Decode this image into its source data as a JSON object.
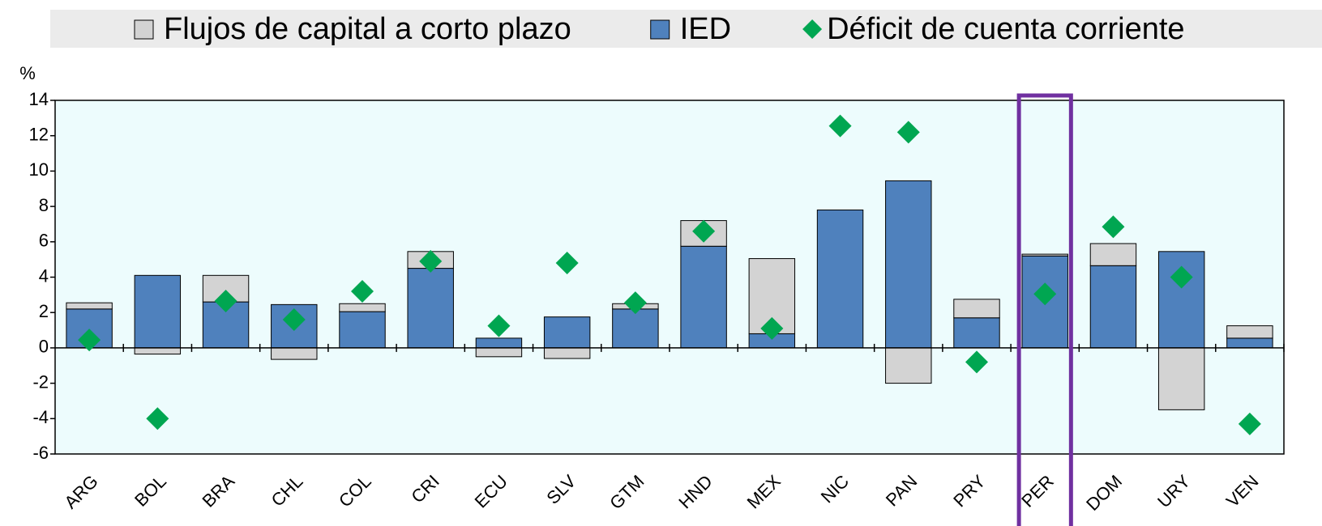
{
  "chart_data": {
    "type": "bar",
    "stacked": true,
    "y_label": "%",
    "categories": [
      "ARG",
      "BOL",
      "BRA",
      "CHL",
      "COL",
      "CRI",
      "ECU",
      "SLV",
      "GTM",
      "HND",
      "MEX",
      "NIC",
      "PAN",
      "PRY",
      "PER",
      "DOM",
      "URY",
      "VEN"
    ],
    "series": [
      {
        "name": "Flujos de capital a corto plazo",
        "color": "#d3d3d3",
        "type": "bar",
        "values": [
          0.35,
          -0.35,
          1.5,
          -0.65,
          0.45,
          0.95,
          -0.5,
          -0.6,
          0.3,
          1.45,
          4.25,
          0,
          -2.0,
          1.05,
          0.1,
          1.25,
          -3.5,
          0.7
        ]
      },
      {
        "name": "IED",
        "color": "#4f81bd",
        "type": "bar",
        "values": [
          2.2,
          4.1,
          2.6,
          2.45,
          2.05,
          4.5,
          0.55,
          1.75,
          2.2,
          5.75,
          0.8,
          7.8,
          9.45,
          1.7,
          5.2,
          4.65,
          5.45,
          0.55
        ]
      },
      {
        "name": "Déficit de cuenta corriente",
        "color": "#00a651",
        "type": "scatter",
        "marker": "diamond",
        "values": [
          0.45,
          -4.0,
          2.65,
          1.6,
          3.2,
          4.9,
          1.25,
          4.8,
          2.55,
          6.6,
          1.1,
          12.55,
          12.2,
          -0.8,
          3.05,
          6.85,
          4.0,
          -4.3
        ]
      }
    ],
    "ylim": [
      -6,
      14
    ],
    "yticks": [
      -6,
      -4,
      -2,
      0,
      2,
      4,
      6,
      8,
      10,
      12,
      14
    ],
    "highlight": "PER",
    "highlight_color": "#7030a0",
    "plot_background": "#edfcfd"
  }
}
